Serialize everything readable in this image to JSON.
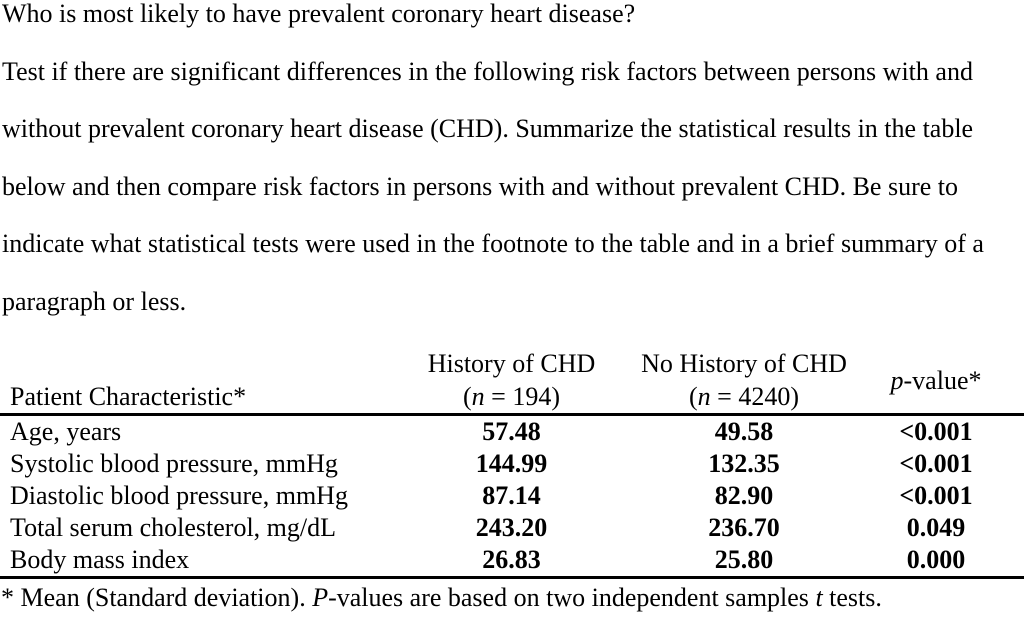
{
  "question": {
    "lines": [
      "Who is most likely to have prevalent coronary heart disease?",
      "Test if there are significant differences in the following risk factors between persons with and",
      "without prevalent coronary heart disease (CHD). Summarize the statistical results in the table",
      "below and then compare risk factors in persons with and without prevalent CHD. Be sure to",
      "indicate what statistical tests were used in the footnote to the table and in a brief summary of a",
      "paragraph or less."
    ]
  },
  "table": {
    "header": {
      "col1": "Patient Characteristic*",
      "col2_line1": "History of CHD",
      "col2_n_open": "(",
      "col2_n": "n",
      "col2_n_rest": " = 194)",
      "col3_line1": "No History of CHD",
      "col3_n_open": "(",
      "col3_n": "n",
      "col3_n_rest": " = 4240)",
      "col4_p": "p",
      "col4_rest": "-value*"
    },
    "rows": [
      {
        "characteristic": "Age, years",
        "chd": "57.48",
        "no_chd": "49.58",
        "p": "<0.001"
      },
      {
        "characteristic": "Systolic blood pressure, mmHg",
        "chd": "144.99",
        "no_chd": "132.35",
        "p": "<0.001"
      },
      {
        "characteristic": "Diastolic blood pressure, mmHg",
        "chd": "87.14",
        "no_chd": "82.90",
        "p": "<0.001"
      },
      {
        "characteristic": "Total serum cholesterol, mg/dL",
        "chd": "243.20",
        "no_chd": "236.70",
        "p": "0.049"
      },
      {
        "characteristic": "Body mass index",
        "chd": "26.83",
        "no_chd": "25.80",
        "p": "0.000"
      }
    ],
    "footnote": {
      "part1": "* Mean (Standard deviation). ",
      "p_italic": "P",
      "part2": "-values are based on two independent samples ",
      "t_italic": "t",
      "part3": " tests."
    }
  },
  "colors": {
    "background": "#ffffff",
    "text": "#000000",
    "rule": "#000000"
  }
}
